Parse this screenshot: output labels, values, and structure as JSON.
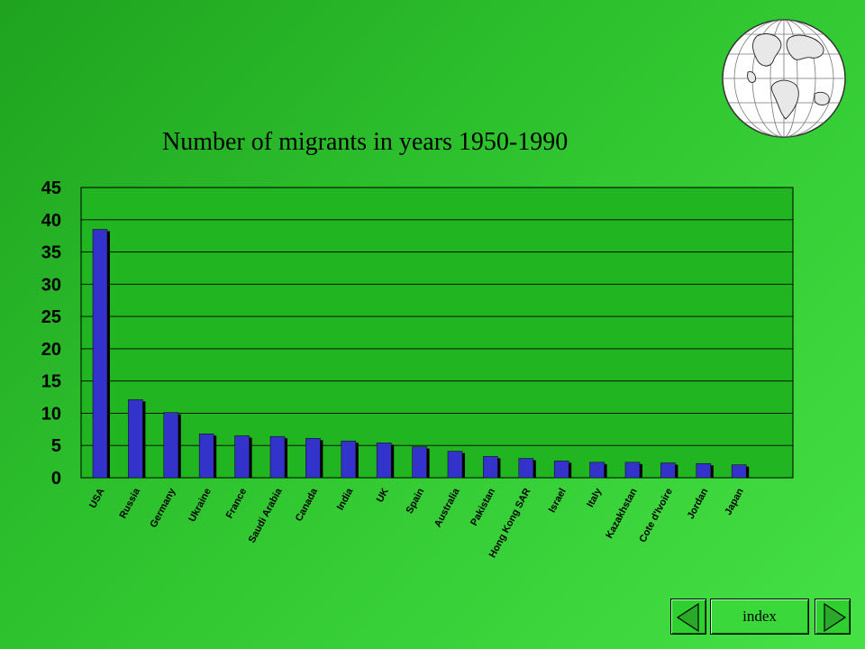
{
  "chart_data": {
    "type": "bar",
    "title": "Number of migrants in years 1950-1990",
    "categories": [
      "USA",
      "Russia",
      "Germany",
      "Ukraine",
      "France",
      "Saudi Arabia",
      "Canada",
      "India",
      "UK",
      "Spain",
      "Australia",
      "Pakistan",
      "Hong Kong SAR",
      "Israel",
      "Italy",
      "Kazakhstan",
      "Cote d'Ivoire",
      "Jordan",
      "Japan"
    ],
    "values": [
      38.5,
      12.1,
      10.1,
      6.8,
      6.5,
      6.4,
      6.1,
      5.7,
      5.4,
      4.8,
      4.1,
      3.3,
      3.0,
      2.6,
      2.4,
      2.4,
      2.3,
      2.2,
      2.0
    ],
    "yticks": [
      "0",
      "5",
      "10",
      "15",
      "20",
      "25",
      "30",
      "35",
      "40",
      "45"
    ],
    "ylim": [
      0,
      45
    ],
    "grid": true,
    "bar_color": "#3333cc",
    "plot_background": "#22b522"
  },
  "nav": {
    "index_label": "index",
    "prev_icon": "triangle-left-icon",
    "next_icon": "triangle-right-icon"
  },
  "decor": {
    "globe_icon": "globe-icon"
  }
}
